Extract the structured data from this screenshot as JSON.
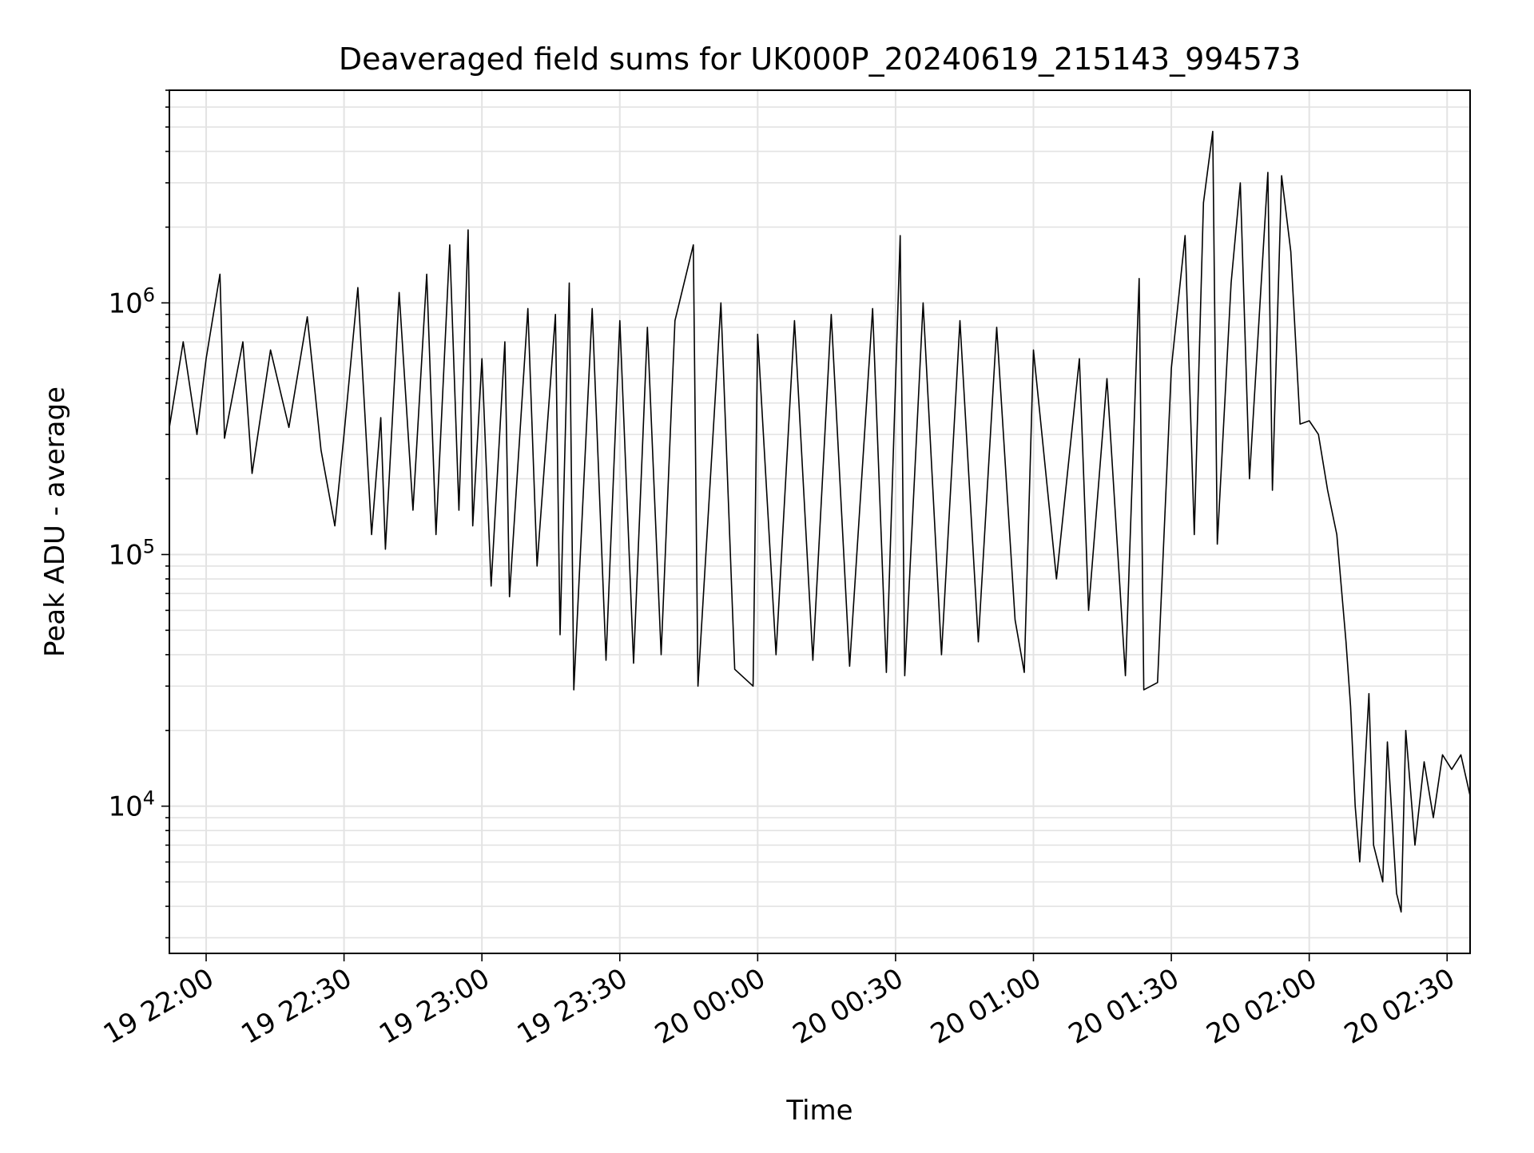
{
  "chart_data": {
    "type": "line",
    "title": "Deaveraged field sums for UK000P_20240619_215143_994573",
    "xlabel": "Time",
    "ylabel": "Peak ADU - average",
    "x_ticks": [
      "19 22:00",
      "19 22:30",
      "19 23:00",
      "19 23:30",
      "20 00:00",
      "20 00:30",
      "20 01:00",
      "20 01:30",
      "20 02:00",
      "20 02:30"
    ],
    "y_ticks": [
      {
        "base": "10",
        "exp": "4",
        "value": 10000
      },
      {
        "base": "10",
        "exp": "5",
        "value": 100000
      },
      {
        "base": "10",
        "exp": "6",
        "value": 1000000
      }
    ],
    "xlim": [
      "2024-06-19 21:52",
      "2024-06-20 02:35"
    ],
    "ylim": [
      2600,
      7000000
    ],
    "yscale": "log",
    "grid": "major and minor",
    "line_color": "#000000",
    "series": [
      {
        "values": [
          [
            "2024-06-19 21:52",
            320000
          ],
          [
            "2024-06-19 21:55",
            700000
          ],
          [
            "2024-06-19 21:58",
            300000
          ],
          [
            "2024-06-19 22:00",
            600000
          ],
          [
            "2024-06-19 22:03",
            1300000
          ],
          [
            "2024-06-19 22:04",
            290000
          ],
          [
            "2024-06-19 22:08",
            700000
          ],
          [
            "2024-06-19 22:10",
            210000
          ],
          [
            "2024-06-19 22:14",
            650000
          ],
          [
            "2024-06-19 22:18",
            320000
          ],
          [
            "2024-06-19 22:22",
            880000
          ],
          [
            "2024-06-19 22:25",
            260000
          ],
          [
            "2024-06-19 22:28",
            130000
          ],
          [
            "2024-06-19 22:30",
            300000
          ],
          [
            "2024-06-19 22:33",
            1150000
          ],
          [
            "2024-06-19 22:36",
            120000
          ],
          [
            "2024-06-19 22:38",
            350000
          ],
          [
            "2024-06-19 22:39",
            105000
          ],
          [
            "2024-06-19 22:42",
            1100000
          ],
          [
            "2024-06-19 22:45",
            150000
          ],
          [
            "2024-06-19 22:48",
            1300000
          ],
          [
            "2024-06-19 22:50",
            120000
          ],
          [
            "2024-06-19 22:53",
            1700000
          ],
          [
            "2024-06-19 22:55",
            150000
          ],
          [
            "2024-06-19 22:57",
            1950000
          ],
          [
            "2024-06-19 22:58",
            130000
          ],
          [
            "2024-06-19 23:00",
            600000
          ],
          [
            "2024-06-19 23:02",
            75000
          ],
          [
            "2024-06-19 23:05",
            700000
          ],
          [
            "2024-06-19 23:06",
            68000
          ],
          [
            "2024-06-19 23:10",
            950000
          ],
          [
            "2024-06-19 23:12",
            90000
          ],
          [
            "2024-06-19 23:16",
            900000
          ],
          [
            "2024-06-19 23:17",
            48000
          ],
          [
            "2024-06-19 23:19",
            1200000
          ],
          [
            "2024-06-19 23:20",
            29000
          ],
          [
            "2024-06-19 23:24",
            950000
          ],
          [
            "2024-06-19 23:27",
            38000
          ],
          [
            "2024-06-19 23:30",
            850000
          ],
          [
            "2024-06-19 23:33",
            37000
          ],
          [
            "2024-06-19 23:36",
            800000
          ],
          [
            "2024-06-19 23:39",
            40000
          ],
          [
            "2024-06-19 23:42",
            850000
          ],
          [
            "2024-06-19 23:46",
            1700000
          ],
          [
            "2024-06-19 23:47",
            30000
          ],
          [
            "2024-06-19 23:52",
            1000000
          ],
          [
            "2024-06-19 23:55",
            35000
          ],
          [
            "2024-06-19 23:59",
            30000
          ],
          [
            "2024-06-20 00:00",
            750000
          ],
          [
            "2024-06-20 00:04",
            40000
          ],
          [
            "2024-06-20 00:08",
            850000
          ],
          [
            "2024-06-20 00:12",
            38000
          ],
          [
            "2024-06-20 00:16",
            900000
          ],
          [
            "2024-06-20 00:20",
            36000
          ],
          [
            "2024-06-20 00:25",
            950000
          ],
          [
            "2024-06-20 00:28",
            34000
          ],
          [
            "2024-06-20 00:31",
            1850000
          ],
          [
            "2024-06-20 00:32",
            33000
          ],
          [
            "2024-06-20 00:36",
            1000000
          ],
          [
            "2024-06-20 00:40",
            40000
          ],
          [
            "2024-06-20 00:44",
            850000
          ],
          [
            "2024-06-20 00:48",
            45000
          ],
          [
            "2024-06-20 00:52",
            800000
          ],
          [
            "2024-06-20 00:56",
            55000
          ],
          [
            "2024-06-20 00:58",
            34000
          ],
          [
            "2024-06-20 01:00",
            650000
          ],
          [
            "2024-06-20 01:05",
            80000
          ],
          [
            "2024-06-20 01:10",
            600000
          ],
          [
            "2024-06-20 01:12",
            60000
          ],
          [
            "2024-06-20 01:16",
            500000
          ],
          [
            "2024-06-20 01:20",
            33000
          ],
          [
            "2024-06-20 01:23",
            1250000
          ],
          [
            "2024-06-20 01:24",
            29000
          ],
          [
            "2024-06-20 01:27",
            31000
          ],
          [
            "2024-06-20 01:30",
            550000
          ],
          [
            "2024-06-20 01:33",
            1850000
          ],
          [
            "2024-06-20 01:35",
            120000
          ],
          [
            "2024-06-20 01:37",
            2500000
          ],
          [
            "2024-06-20 01:39",
            4800000
          ],
          [
            "2024-06-20 01:40",
            110000
          ],
          [
            "2024-06-20 01:43",
            1200000
          ],
          [
            "2024-06-20 01:45",
            3000000
          ],
          [
            "2024-06-20 01:47",
            200000
          ],
          [
            "2024-06-20 01:51",
            3300000
          ],
          [
            "2024-06-20 01:52",
            180000
          ],
          [
            "2024-06-20 01:54",
            3200000
          ],
          [
            "2024-06-20 01:56",
            1600000
          ],
          [
            "2024-06-20 01:58",
            330000
          ],
          [
            "2024-06-20 02:00",
            340000
          ],
          [
            "2024-06-20 02:02",
            300000
          ],
          [
            "2024-06-20 02:04",
            180000
          ],
          [
            "2024-06-20 02:06",
            120000
          ],
          [
            "2024-06-20 02:08",
            45000
          ],
          [
            "2024-06-20 02:09",
            25000
          ],
          [
            "2024-06-20 02:10",
            10000
          ],
          [
            "2024-06-20 02:11",
            6000
          ],
          [
            "2024-06-20 02:13",
            28000
          ],
          [
            "2024-06-20 02:14",
            7000
          ],
          [
            "2024-06-20 02:16",
            5000
          ],
          [
            "2024-06-20 02:17",
            18000
          ],
          [
            "2024-06-20 02:19",
            4500
          ],
          [
            "2024-06-20 02:20",
            3800
          ],
          [
            "2024-06-20 02:21",
            20000
          ],
          [
            "2024-06-20 02:23",
            7000
          ],
          [
            "2024-06-20 02:25",
            15000
          ],
          [
            "2024-06-20 02:27",
            9000
          ],
          [
            "2024-06-20 02:29",
            16000
          ],
          [
            "2024-06-20 02:31",
            14000
          ],
          [
            "2024-06-20 02:33",
            16000
          ],
          [
            "2024-06-20 02:35",
            11000
          ]
        ]
      }
    ]
  }
}
